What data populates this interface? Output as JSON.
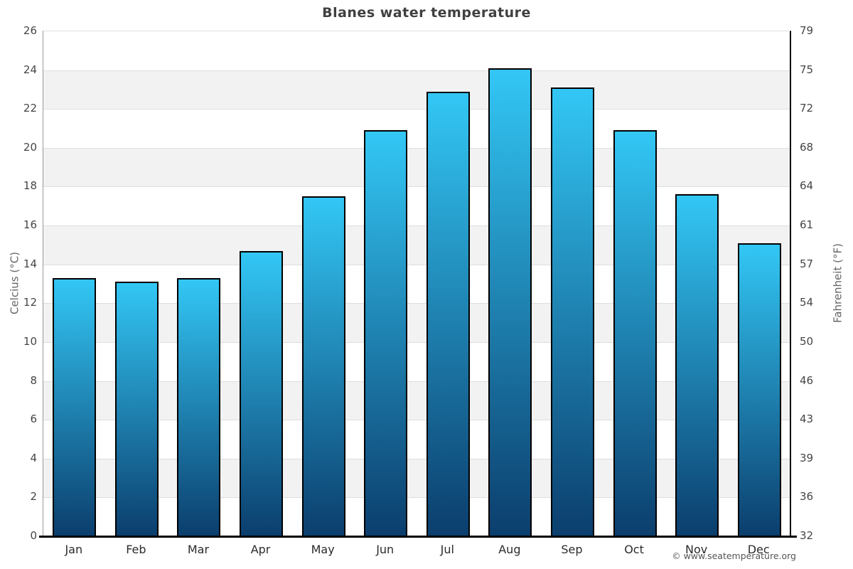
{
  "page": {
    "watermark": "© www.seatemperature.org"
  },
  "chart_data": {
    "type": "bar",
    "title": "Blanes water temperature",
    "categories": [
      "Jan",
      "Feb",
      "Mar",
      "Apr",
      "May",
      "Jun",
      "Jul",
      "Aug",
      "Sep",
      "Oct",
      "Nov",
      "Dec"
    ],
    "values": [
      13.3,
      13.1,
      13.3,
      14.7,
      17.5,
      20.9,
      22.9,
      24.1,
      23.1,
      20.9,
      17.6,
      15.1
    ],
    "unit": "°C",
    "ylabel_left": "Celcius (°C)",
    "ylabel_right": "Fahrenheit (°F)",
    "ylim": [
      0,
      26
    ],
    "yticks_celsius": [
      0,
      2,
      4,
      6,
      8,
      10,
      12,
      14,
      16,
      18,
      20,
      22,
      24,
      26
    ],
    "yticks_fahrenheit": [
      "32",
      "36",
      "39",
      "43",
      "46",
      "50",
      "54",
      "57",
      "61",
      "64",
      "68",
      "72",
      "75",
      "79"
    ],
    "legend": "none",
    "grid": "alternating-horizontal-bands",
    "colors": {
      "bar_gradient_top": "#33c7f5",
      "bar_gradient_bottom": "#0b3e6d",
      "bar_border": "#000000",
      "band_gray": "#f2f2f2",
      "band_white": "#ffffff",
      "gridline": "#dedede",
      "title_text": "#404040",
      "tick_text": "#454545",
      "axis_title_text": "#666666",
      "watermark_text": "#555555"
    }
  }
}
